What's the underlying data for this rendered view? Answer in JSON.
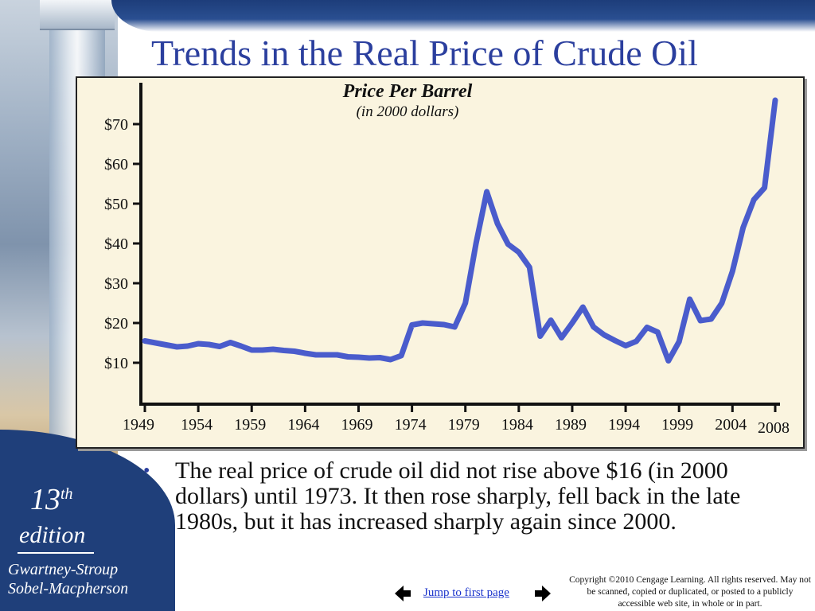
{
  "slide": {
    "title": "Trends in the Real Price of Crude Oil",
    "bullet": "The real price of crude oil did not rise above $16 (in 2000 dollars) until 1973. It then rose sharply, fell back in the late 1980s, but it has increased sharply again since 2000.",
    "edition_number": "13",
    "edition_suffix": "th",
    "edition_word": "edition",
    "authors_line1": "Gwartney-Stroup",
    "authors_line2": "Sobel-Macpherson",
    "nav_link": "Jump to first page",
    "copyright": "Copyright ©2010 Cengage Learning. All rights reserved. May not be scanned, copied or duplicated, or posted to a publicly accessible web site, in whole or in part."
  },
  "colors": {
    "title": "#2b3f9e",
    "line": "#4a5ccc",
    "chart_bg": "#faf4df"
  },
  "chart_data": {
    "type": "line",
    "title": "Price Per Barrel",
    "subtitle": "(in 2000 dollars)",
    "x_ticks": [
      "1949",
      "1954",
      "1959",
      "1964",
      "1969",
      "1974",
      "1979",
      "1984",
      "1989",
      "1994",
      "1999",
      "2004",
      "2008"
    ],
    "y_ticks": [
      "$10",
      "$20",
      "$30",
      "$40",
      "$50",
      "$60",
      "$70"
    ],
    "y_tick_values": [
      10,
      20,
      30,
      40,
      50,
      60,
      70
    ],
    "xlim": [
      1949,
      2008
    ],
    "ylim": [
      0,
      80
    ],
    "grid": false,
    "series": [
      {
        "x": [
          1949,
          1950,
          1951,
          1952,
          1953,
          1954,
          1955,
          1956,
          1957,
          1958,
          1959,
          1960,
          1961,
          1962,
          1963,
          1964,
          1965,
          1966,
          1967,
          1968,
          1969,
          1970,
          1971,
          1972,
          1973,
          1974,
          1975,
          1976,
          1977,
          1978,
          1979,
          1980,
          1981,
          1982,
          1983,
          1984,
          1985,
          1986,
          1987,
          1988,
          1989,
          1990,
          1991,
          1992,
          1993,
          1994,
          1995,
          1996,
          1997,
          1998,
          1999,
          2000,
          2001,
          2002,
          2003,
          2004,
          2005,
          2006,
          2007,
          2008
        ],
        "y": [
          15.5,
          15,
          14.5,
          14,
          14.2,
          14.8,
          14.6,
          14.1,
          15.1,
          14.2,
          13.2,
          13.2,
          13.4,
          13.1,
          12.9,
          12.4,
          12,
          12,
          12,
          11.5,
          11.4,
          11.2,
          11.3,
          10.8,
          11.8,
          19.5,
          20,
          19.8,
          19.6,
          19,
          25,
          40,
          53,
          45,
          39.8,
          37.8,
          34,
          16.7,
          20.7,
          16.3,
          20,
          24,
          19,
          17,
          15.6,
          14.3,
          15.4,
          18.9,
          17.7,
          10.5,
          15.3,
          26,
          20.6,
          21,
          25,
          33,
          44,
          51,
          54,
          76
        ]
      }
    ]
  }
}
